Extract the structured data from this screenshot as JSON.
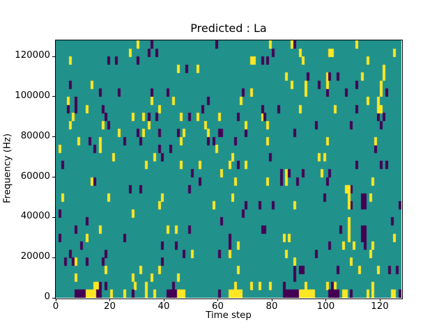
{
  "figure": {
    "background_color": "#ffffff"
  },
  "chart_data": {
    "type": "heatmap",
    "title": "Predicted : La",
    "xlabel": "Time step",
    "ylabel": "Frequency (Hz)",
    "x_range": [
      0,
      128
    ],
    "y_range": [
      0,
      128000
    ],
    "x_tick_values": [
      0,
      20,
      40,
      60,
      80,
      100,
      120
    ],
    "x_tick_labels": [
      "0",
      "20",
      "40",
      "60",
      "80",
      "100",
      "120"
    ],
    "y_tick_values": [
      0,
      20000,
      40000,
      60000,
      80000,
      100000,
      120000
    ],
    "y_tick_labels": [
      "0",
      "20000",
      "40000",
      "60000",
      "80000",
      "100000",
      "120000"
    ],
    "grid": false,
    "legend": "none",
    "rows": 32,
    "cols": 128,
    "cell_width_hz": 4000,
    "cell_width_steps": 1,
    "colormap": "viridis-ternary",
    "colors": {
      "background_mid": "#21918c",
      "low_purple": "#440154",
      "high_yellow": "#fde725",
      "spine": "#000000",
      "text": "#000000"
    },
    "features_format": "[col_start, col_end, row_start, row_end, color] rows counted from bottom, 'y'=yellow high, 'p'=purple low",
    "features": [
      [
        7,
        11,
        0,
        1,
        "p"
      ],
      [
        11,
        15,
        0,
        1,
        "y"
      ],
      [
        15,
        17,
        0,
        1,
        "p"
      ],
      [
        16,
        17,
        1,
        2,
        "p"
      ],
      [
        20,
        21,
        0,
        1,
        "y"
      ],
      [
        25,
        26,
        0,
        1,
        "y"
      ],
      [
        28,
        29,
        0,
        1,
        "p"
      ],
      [
        33,
        34,
        0,
        2,
        "y"
      ],
      [
        36,
        37,
        0,
        1,
        "y"
      ],
      [
        41,
        45,
        0,
        1,
        "p"
      ],
      [
        43,
        44,
        1,
        2,
        "p"
      ],
      [
        45,
        48,
        0,
        1,
        "y"
      ],
      [
        60,
        61,
        0,
        1,
        "p"
      ],
      [
        64,
        69,
        0,
        1,
        "y"
      ],
      [
        66,
        67,
        1,
        2,
        "y"
      ],
      [
        84,
        89,
        0,
        1,
        "p"
      ],
      [
        84,
        85,
        1,
        2,
        "p"
      ],
      [
        89,
        90,
        0,
        1,
        "p"
      ],
      [
        90,
        96,
        0,
        1,
        "y"
      ],
      [
        92,
        93,
        1,
        2,
        "y"
      ],
      [
        101,
        105,
        0,
        1,
        "p"
      ],
      [
        102,
        103,
        1,
        2,
        "p"
      ],
      [
        106,
        108,
        0,
        1,
        "y"
      ],
      [
        109,
        110,
        0,
        1,
        "p"
      ],
      [
        115,
        116,
        0,
        1,
        "y"
      ],
      [
        117,
        118,
        0,
        2,
        "y"
      ],
      [
        124,
        126,
        0,
        1,
        "y"
      ],
      [
        127,
        128,
        0,
        1,
        "p"
      ],
      [
        108,
        109,
        7,
        10,
        "y"
      ],
      [
        108,
        109,
        11,
        14,
        "y"
      ],
      [
        113,
        115,
        11,
        13,
        "p"
      ],
      [
        113,
        115,
        7,
        9,
        "p"
      ],
      [
        121,
        122,
        27,
        29,
        "y"
      ],
      [
        120,
        121,
        25,
        27,
        "y"
      ],
      [
        119,
        120,
        23,
        25,
        "y"
      ]
    ],
    "noise": {
      "seed": 7,
      "yellow_density": 0.033,
      "purple_density": 0.029,
      "rows_from": 1,
      "rows_to": 32
    }
  }
}
